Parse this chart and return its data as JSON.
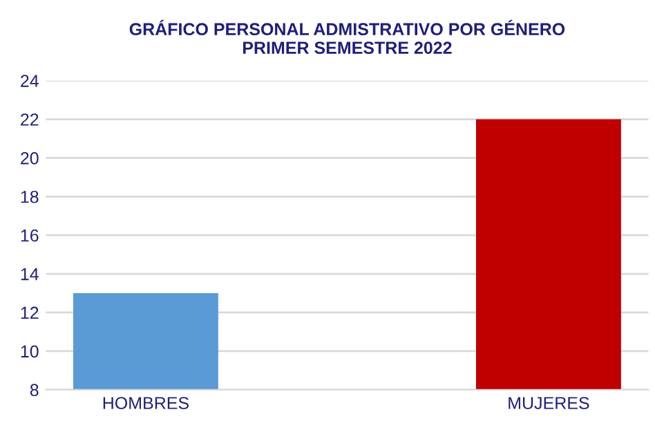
{
  "chart_data": {
    "type": "bar",
    "title": "GRÁFICO PERSONAL ADMISTRATIVO POR GÉNERO\nPRIMER SEMESTRE 2022",
    "categories": [
      "HOMBRES",
      "MUJERES"
    ],
    "values": [
      13,
      22
    ],
    "colors": [
      "#5b9bd5",
      "#c00000"
    ],
    "ylim": [
      8,
      24
    ],
    "yticks": [
      8,
      10,
      12,
      14,
      16,
      18,
      20,
      22,
      24
    ],
    "grid": "y"
  }
}
